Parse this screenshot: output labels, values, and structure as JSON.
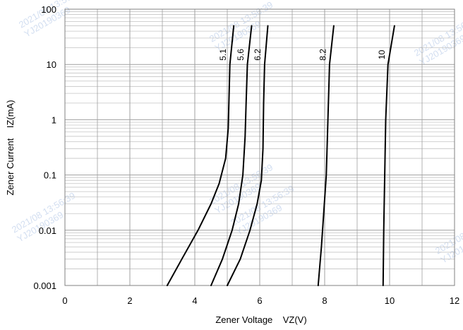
{
  "chart_data": {
    "type": "line",
    "xlabel": "Zener Voltage    VZ(V)",
    "ylabel": "Zener Current    IZ(mA)",
    "xlim": [
      0,
      12
    ],
    "ylim": [
      0.001,
      100
    ],
    "yscale": "log",
    "grid": true,
    "x_ticks": [
      "0",
      "2",
      "4",
      "6",
      "8",
      "10",
      "12"
    ],
    "y_ticks": [
      "0.001",
      "0.01",
      "0.1",
      "1",
      "10",
      "100"
    ],
    "series": [
      {
        "name": "5.1",
        "points": [
          [
            3.15,
            0.001
          ],
          [
            3.6,
            0.003
          ],
          [
            4.1,
            0.01
          ],
          [
            4.5,
            0.03
          ],
          [
            4.75,
            0.07
          ],
          [
            4.95,
            0.2
          ],
          [
            5.03,
            0.7
          ],
          [
            5.05,
            2
          ],
          [
            5.08,
            10
          ],
          [
            5.2,
            50
          ]
        ]
      },
      {
        "name": "5.6",
        "points": [
          [
            4.5,
            0.001
          ],
          [
            4.85,
            0.003
          ],
          [
            5.15,
            0.01
          ],
          [
            5.35,
            0.03
          ],
          [
            5.48,
            0.1
          ],
          [
            5.55,
            0.5
          ],
          [
            5.58,
            2
          ],
          [
            5.62,
            10
          ],
          [
            5.75,
            50
          ]
        ]
      },
      {
        "name": "6.2",
        "points": [
          [
            5.0,
            0.001
          ],
          [
            5.4,
            0.003
          ],
          [
            5.7,
            0.01
          ],
          [
            5.92,
            0.03
          ],
          [
            6.05,
            0.08
          ],
          [
            6.1,
            0.3
          ],
          [
            6.12,
            2
          ],
          [
            6.15,
            10
          ],
          [
            6.25,
            50
          ]
        ]
      },
      {
        "name": "8.2",
        "points": [
          [
            7.8,
            0.001
          ],
          [
            7.9,
            0.005
          ],
          [
            7.97,
            0.02
          ],
          [
            8.05,
            0.1
          ],
          [
            8.1,
            1
          ],
          [
            8.15,
            10
          ],
          [
            8.28,
            50
          ]
        ]
      },
      {
        "name": "10",
        "points": [
          [
            9.8,
            0.001
          ],
          [
            9.82,
            0.01
          ],
          [
            9.85,
            0.1
          ],
          [
            9.88,
            1
          ],
          [
            9.95,
            10
          ],
          [
            10.15,
            50
          ]
        ]
      }
    ]
  },
  "watermark": {
    "line1": "2021/08 13:56:39",
    "line2": "YJ20190369"
  },
  "colors": {
    "curve": "#000000",
    "grid": "#a0a0a0",
    "watermark": "#9db7e0"
  }
}
